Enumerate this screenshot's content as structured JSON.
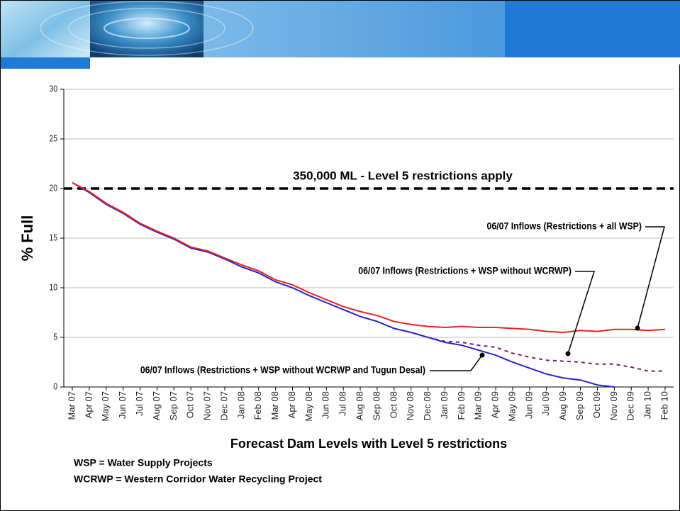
{
  "chart_data": {
    "type": "line",
    "y_label": "% Full",
    "x_label": "Forecast Dam Levels with Level 5 restrictions",
    "categories": [
      "Mar 07",
      "Apr 07",
      "May 07",
      "Jun 07",
      "Jul 07",
      "Aug 07",
      "Sep 07",
      "Oct 07",
      "Nov 07",
      "Dec 07",
      "Jan 08",
      "Feb 08",
      "Mar 08",
      "Apr 08",
      "May 08",
      "Jun 08",
      "Jul 08",
      "Aug 08",
      "Sep 08",
      "Oct 08",
      "Nov 08",
      "Dec 08",
      "Jan 09",
      "Feb 09",
      "Mar 09",
      "Apr 09",
      "May 09",
      "Jun 09",
      "Jul 09",
      "Aug 09",
      "Sep 09",
      "Oct 09",
      "Nov 09",
      "Dec 09",
      "Jan 10",
      "Feb 10"
    ],
    "ylim": [
      0,
      30
    ],
    "yticks": [
      0,
      5,
      10,
      15,
      20,
      25,
      30
    ],
    "grid": true,
    "reference_line": {
      "value": 20,
      "label": "350,000 ML - Level 5 restrictions apply",
      "color": "#000000"
    },
    "series": [
      {
        "name": "06/07 Inflows (Restrictions + all WSP)",
        "color": "#e8231e",
        "dashed": false,
        "values": [
          20.6,
          19.7,
          18.5,
          17.6,
          16.5,
          15.7,
          15.0,
          14.1,
          13.7,
          13.0,
          12.3,
          11.7,
          10.8,
          10.3,
          9.5,
          8.8,
          8.1,
          7.6,
          7.2,
          6.6,
          6.3,
          6.1,
          6.0,
          6.1,
          6.0,
          6.0,
          5.9,
          5.8,
          5.6,
          5.5,
          5.7,
          5.6,
          5.8,
          5.8,
          5.7,
          5.8
        ]
      },
      {
        "name": "06/07 Inflows (Restrictions + WSP without WCRWP)",
        "color": "#7a1a6a",
        "dashed": true,
        "values": [
          null,
          null,
          null,
          null,
          null,
          null,
          null,
          null,
          null,
          null,
          null,
          null,
          null,
          null,
          null,
          null,
          null,
          null,
          null,
          null,
          null,
          5.0,
          4.6,
          4.5,
          4.2,
          4.0,
          3.4,
          3.0,
          2.7,
          2.6,
          2.5,
          2.3,
          2.3,
          2.0,
          1.6,
          1.6
        ]
      },
      {
        "name": "06/07 Inflows (Restrictions + WSP without WCRWP and Tugun Desal)",
        "color": "#2424d0",
        "dashed": false,
        "values": [
          20.6,
          19.6,
          18.4,
          17.5,
          16.4,
          15.6,
          14.9,
          14.0,
          13.6,
          12.9,
          12.1,
          11.5,
          10.6,
          10.0,
          9.2,
          8.5,
          7.8,
          7.1,
          6.6,
          5.9,
          5.5,
          5.0,
          4.5,
          4.2,
          3.7,
          3.2,
          2.5,
          1.9,
          1.3,
          0.9,
          0.7,
          0.2,
          0,
          null,
          null,
          null
        ]
      }
    ]
  },
  "notes": [
    "WSP = Water Supply Projects",
    "WCRWP = Western Corridor Water Recycling Project"
  ]
}
